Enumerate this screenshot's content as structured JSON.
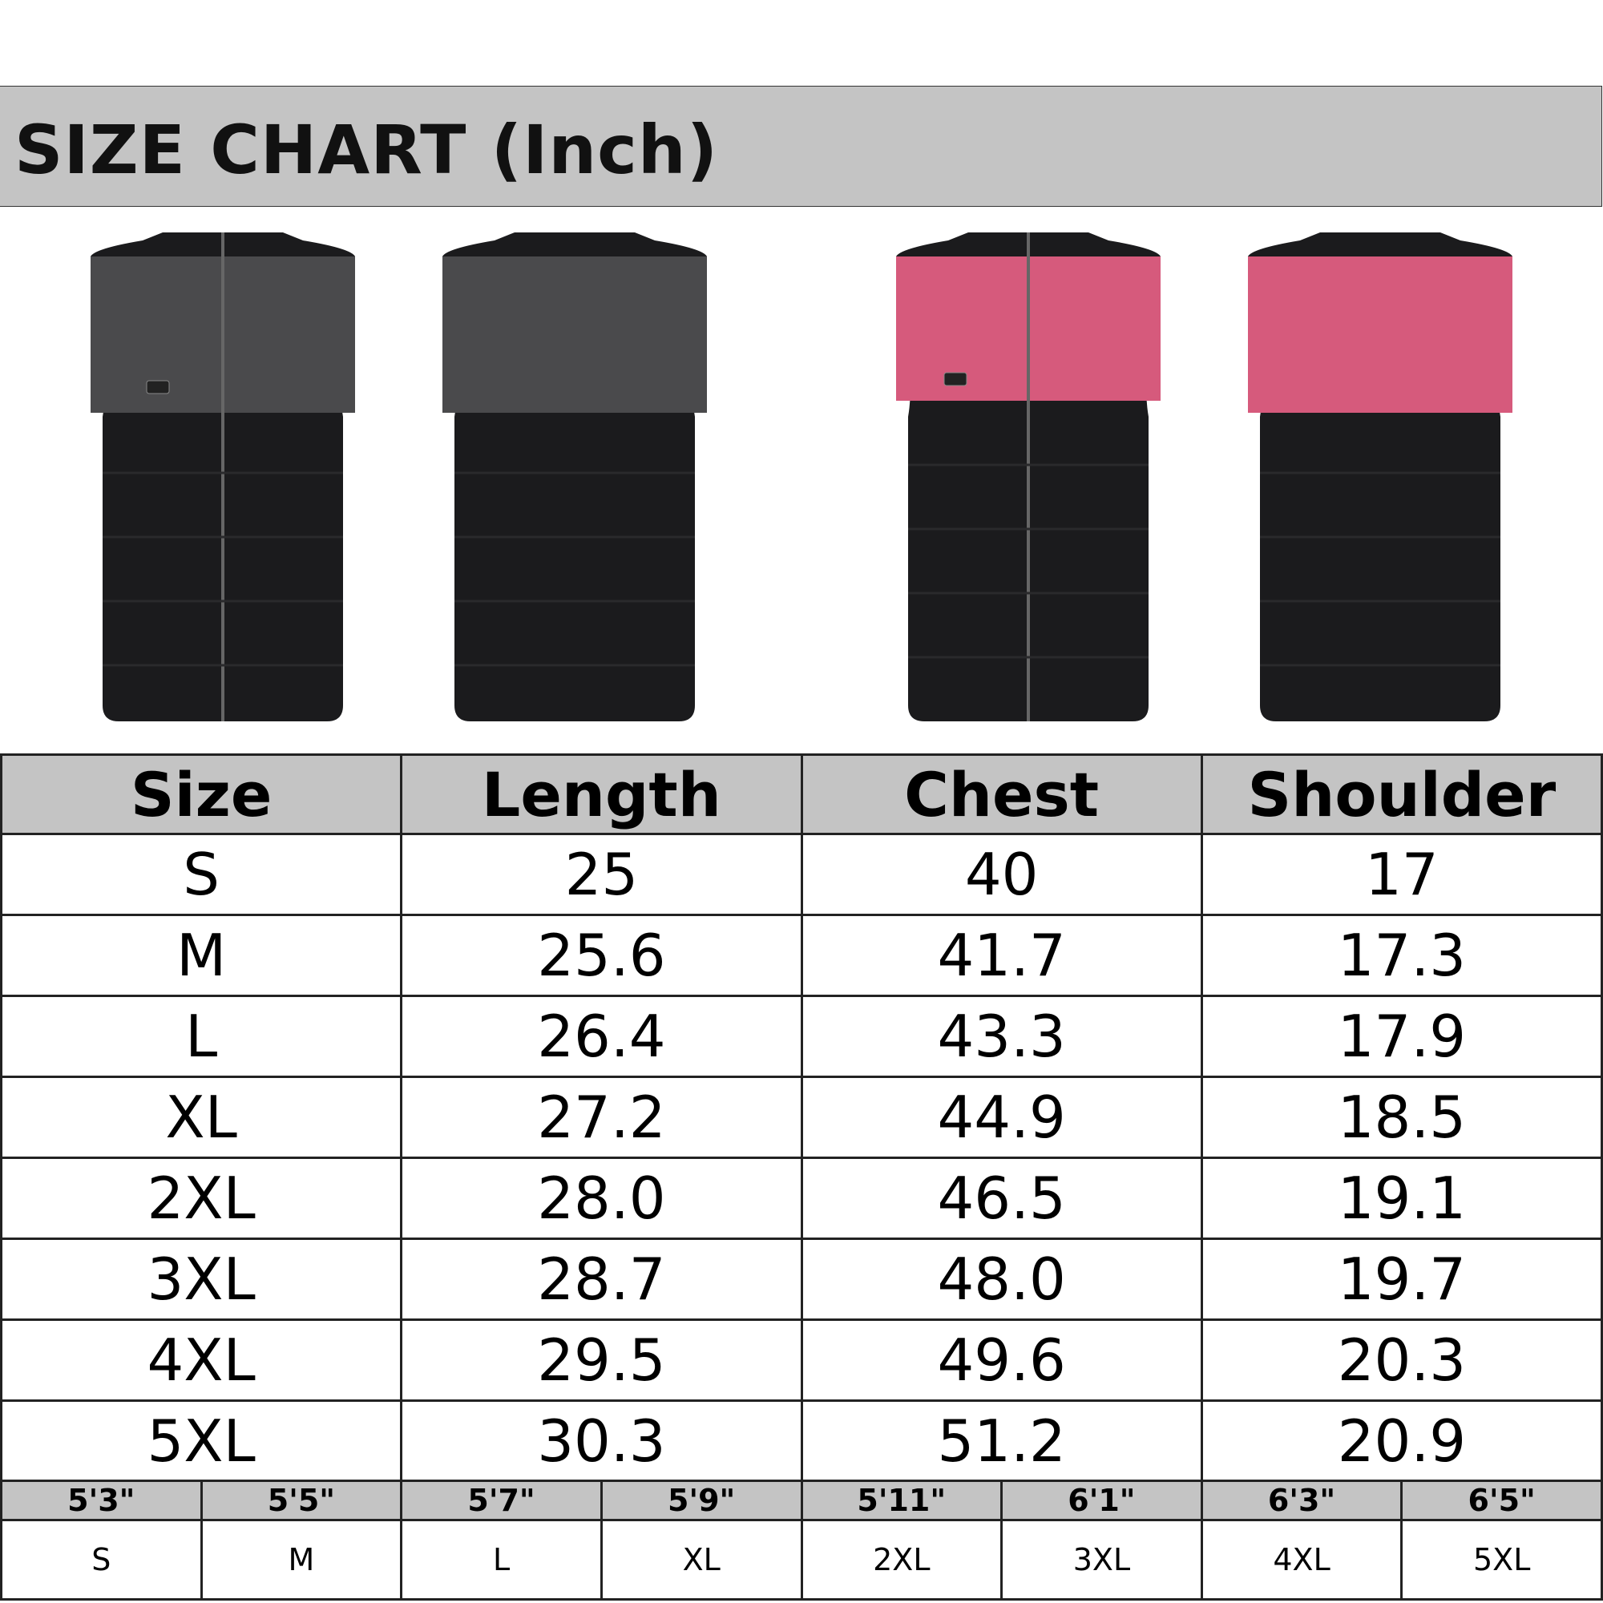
{
  "title": "SIZE CHART (Inch)",
  "colors": {
    "header_bg": "#c4c4c4",
    "vest_black": "#1b1b1d",
    "vest_gray": "#4a4a4c",
    "vest_pink": "#d65a7c"
  },
  "images": [
    "mens-vest-front",
    "mens-vest-back",
    "womens-vest-front",
    "womens-vest-back"
  ],
  "table": {
    "headers": [
      "Size",
      "Length",
      "Chest",
      "Shoulder"
    ],
    "rows": [
      [
        "S",
        "25",
        "40",
        "17"
      ],
      [
        "M",
        "25.6",
        "41.7",
        "17.3"
      ],
      [
        "L",
        "26.4",
        "43.3",
        "17.9"
      ],
      [
        "XL",
        "27.2",
        "44.9",
        "18.5"
      ],
      [
        "2XL",
        "28.0",
        "46.5",
        "19.1"
      ],
      [
        "3XL",
        "28.7",
        "48.0",
        "19.7"
      ],
      [
        "4XL",
        "29.5",
        "49.6",
        "20.3"
      ],
      [
        "5XL",
        "30.3",
        "51.2",
        "20.9"
      ]
    ]
  },
  "height_guide": {
    "heights": [
      "5'3\"",
      "5'5\"",
      "5'7\"",
      "5'9\"",
      "5'11\"",
      "6'1\"",
      "6'3\"",
      "6'5\""
    ],
    "sizes": [
      "S",
      "M",
      "L",
      "XL",
      "2XL",
      "3XL",
      "4XL",
      "5XL"
    ]
  }
}
